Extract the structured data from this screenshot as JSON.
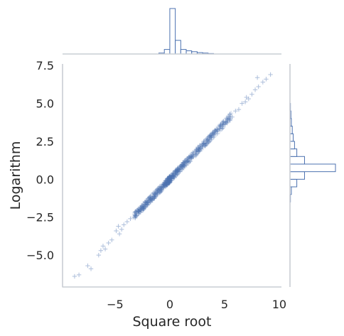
{
  "chart_data": {
    "type": "scatter",
    "subtype": "jointplot with marginal step histograms",
    "marker": "+",
    "color": "#4c72b0",
    "grid": false,
    "legend": "none",
    "xlabel": "Square root",
    "ylabel": "Logarithm",
    "xlim": [
      -9.8,
      10.2
    ],
    "ylim": [
      -7.1,
      7.6
    ],
    "xticks": [
      {
        "value": -5,
        "label": "−5"
      },
      {
        "value": 0,
        "label": "0"
      },
      {
        "value": 5,
        "label": "5"
      },
      {
        "value": 10,
        "label": "10"
      }
    ],
    "yticks": [
      {
        "value": -5,
        "label": "−5.0"
      },
      {
        "value": -2.5,
        "label": "−2.5"
      },
      {
        "value": 0,
        "label": "0.0"
      },
      {
        "value": 2.5,
        "label": "2.5"
      },
      {
        "value": 5,
        "label": "5.0"
      },
      {
        "value": 7.5,
        "label": "7.5"
      }
    ],
    "trend": {
      "slope": 0.74,
      "intercept": 0.0,
      "x_range": [
        -8.5,
        9.3
      ]
    },
    "points": [
      {
        "x": -8.7,
        "y": -6.4
      },
      {
        "x": -8.3,
        "y": -6.3
      },
      {
        "x": -7.5,
        "y": -5.7
      },
      {
        "x": -7.2,
        "y": -5.9
      },
      {
        "x": -6.3,
        "y": -4.7
      },
      {
        "x": -6.5,
        "y": -5.0
      },
      {
        "x": -5.9,
        "y": -4.6
      },
      {
        "x": -6.1,
        "y": -4.4
      },
      {
        "x": -5.6,
        "y": -4.2
      },
      {
        "x": -5.3,
        "y": -4.0
      },
      {
        "x": -4.9,
        "y": -3.4
      },
      {
        "x": -4.6,
        "y": -3.6
      },
      {
        "x": -4.4,
        "y": -3.3
      },
      {
        "x": -4.7,
        "y": -3.1
      },
      {
        "x": -4.2,
        "y": -3.0
      },
      {
        "x": -3.9,
        "y": -2.8
      },
      {
        "x": -3.6,
        "y": -2.6
      },
      {
        "x": -3.3,
        "y": -2.5
      },
      {
        "x": -3.1,
        "y": -2.2
      },
      {
        "x": -2.8,
        "y": -2.1
      },
      {
        "x": 3.1,
        "y": 2.4
      },
      {
        "x": 3.4,
        "y": 2.4
      },
      {
        "x": 3.6,
        "y": 2.8
      },
      {
        "x": 3.9,
        "y": 3.0
      },
      {
        "x": 4.1,
        "y": 3.1
      },
      {
        "x": 4.4,
        "y": 3.2
      },
      {
        "x": 4.6,
        "y": 3.5
      },
      {
        "x": 4.9,
        "y": 3.6
      },
      {
        "x": 5.1,
        "y": 3.8
      },
      {
        "x": 5.4,
        "y": 4.0
      },
      {
        "x": 5.7,
        "y": 4.1
      },
      {
        "x": 6.0,
        "y": 4.5
      },
      {
        "x": 6.3,
        "y": 4.6
      },
      {
        "x": 6.6,
        "y": 5.0
      },
      {
        "x": 6.9,
        "y": 5.1
      },
      {
        "x": 7.2,
        "y": 5.3
      },
      {
        "x": 7.5,
        "y": 5.6
      },
      {
        "x": 7.8,
        "y": 5.9
      },
      {
        "x": 8.1,
        "y": 6.1
      },
      {
        "x": 8.5,
        "y": 6.4
      },
      {
        "x": 8.8,
        "y": 6.6
      },
      {
        "x": 9.2,
        "y": 6.9
      },
      {
        "x": 8.0,
        "y": 6.7
      },
      {
        "x": 7.0,
        "y": 5.4
      },
      {
        "x": 5.5,
        "y": 4.3
      }
    ],
    "marginal_x": {
      "bin_edges": [
        -1.0,
        -0.5,
        0.0,
        0.5,
        1.0,
        1.5,
        2.0,
        2.5,
        3.0,
        3.5,
        4.0
      ],
      "counts": [
        2,
        10,
        100,
        30,
        10,
        7,
        5,
        3,
        2,
        1
      ]
    },
    "marginal_y": {
      "bin_edges": [
        -1.5,
        -1.0,
        -0.5,
        0.0,
        0.5,
        1.0,
        1.5,
        2.0,
        2.5,
        3.0,
        3.5,
        4.0,
        4.5,
        5.0
      ],
      "counts": [
        1,
        3,
        15,
        32,
        100,
        32,
        15,
        10,
        7,
        5,
        3,
        2,
        1
      ]
    }
  }
}
